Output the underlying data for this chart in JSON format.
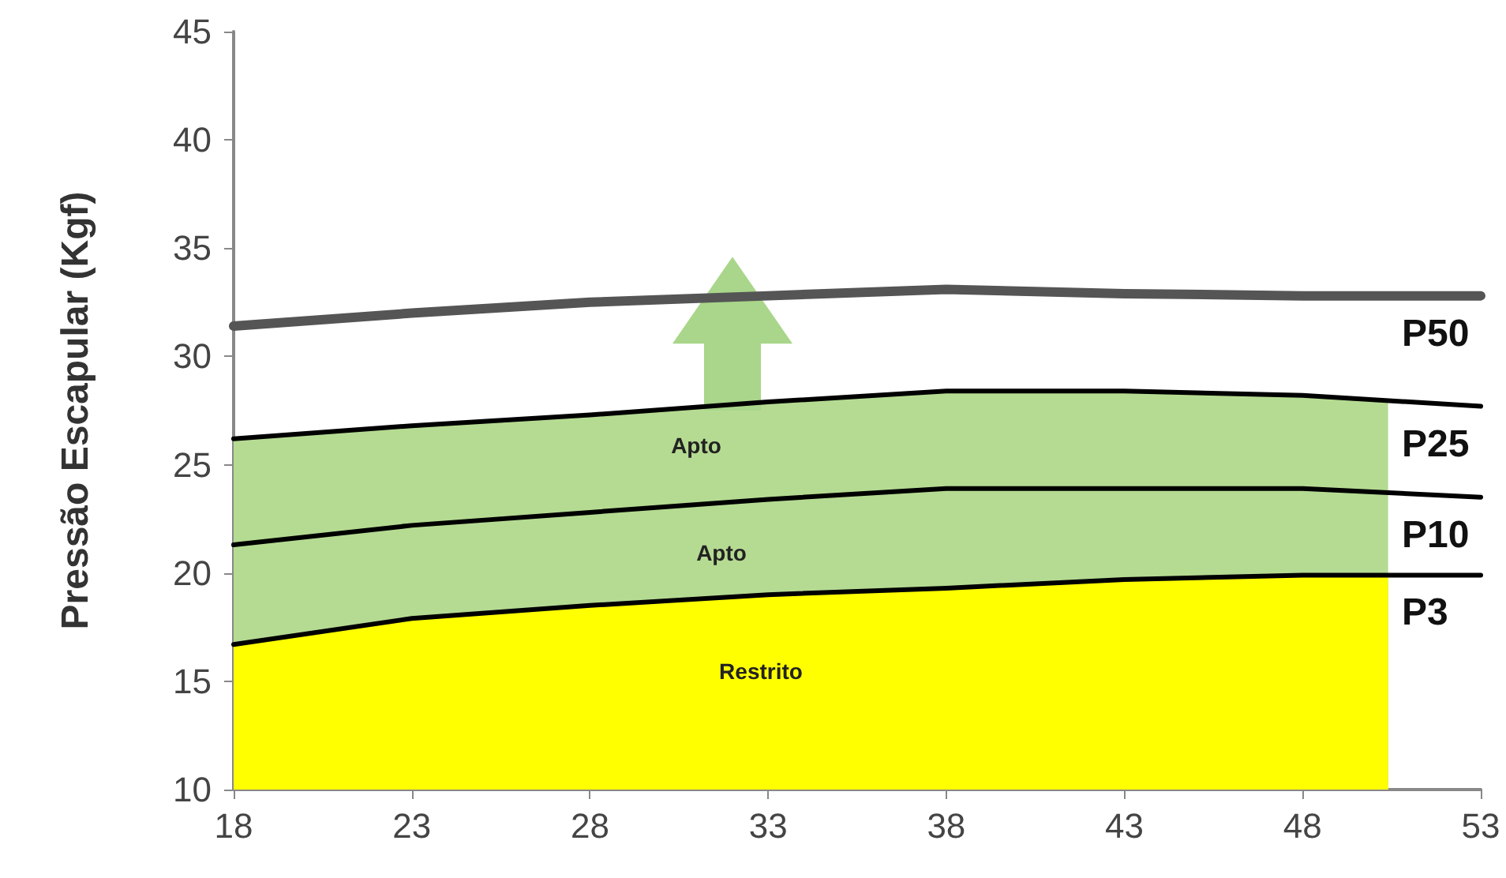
{
  "chart_data": {
    "type": "line",
    "ylabel": "Pressão Escapular (Kgf)",
    "xlim": [
      18,
      53
    ],
    "xticks": [
      18,
      23,
      28,
      33,
      38,
      43,
      48,
      53
    ],
    "ylim": [
      10,
      45
    ],
    "yticks": [
      10,
      15,
      20,
      25,
      30,
      35,
      40,
      45
    ],
    "grid": false,
    "legend": false,
    "marker": "none",
    "annotations": [
      "Apto",
      "Apto",
      "Restrito"
    ],
    "series": [
      {
        "type": "area",
        "color": "#b5db92",
        "x": [
          18,
          23,
          28,
          33,
          38,
          43,
          48,
          50.4
        ],
        "values": [
          26.2,
          26.8,
          27.3,
          27.9,
          28.4,
          28.4,
          28.2,
          28.0
        ]
      },
      {
        "type": "area",
        "color": "#ffff00",
        "x": [
          18,
          23,
          28,
          33,
          38,
          43,
          48,
          50.4
        ],
        "values": [
          16.7,
          17.9,
          18.5,
          19.0,
          19.3,
          19.7,
          19.9,
          19.9
        ]
      },
      {
        "name": "P50",
        "color": "#555555",
        "x": [
          18,
          23,
          28,
          33,
          38,
          43,
          48,
          53
        ],
        "values": [
          31.4,
          32.0,
          32.5,
          32.8,
          33.1,
          32.9,
          32.8,
          32.8
        ]
      },
      {
        "name": "P25",
        "color": "#000000",
        "x": [
          18,
          23,
          28,
          33,
          38,
          43,
          48,
          53
        ],
        "values": [
          26.2,
          26.8,
          27.3,
          27.9,
          28.4,
          28.4,
          28.2,
          27.7
        ]
      },
      {
        "name": "P10",
        "color": "#000000",
        "x": [
          18,
          23,
          28,
          33,
          38,
          43,
          48,
          53
        ],
        "values": [
          21.3,
          22.2,
          22.8,
          23.4,
          23.9,
          23.9,
          23.9,
          23.5
        ]
      },
      {
        "name": "P3",
        "color": "#000000",
        "x": [
          18,
          23,
          28,
          33,
          38,
          43,
          48,
          53
        ],
        "values": [
          16.7,
          17.9,
          18.5,
          19.0,
          19.3,
          19.7,
          19.9,
          19.9
        ]
      }
    ]
  }
}
